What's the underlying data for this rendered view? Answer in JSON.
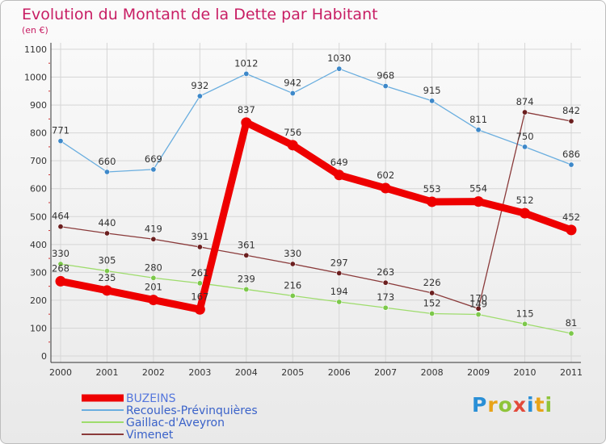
{
  "title": "Evolution du Montant de la Dette par Habitant",
  "subtitle": "(en €)",
  "logo": {
    "text": "Proxiti",
    "colors": [
      "#2a8fd6",
      "#e8a318",
      "#8fc43a",
      "#e24a3b",
      "#2a8fd6",
      "#e8a318",
      "#8fc43a"
    ]
  },
  "chart_data": {
    "type": "line",
    "x": [
      "2000",
      "2001",
      "2002",
      "2003",
      "2004",
      "2005",
      "2006",
      "2007",
      "2008",
      "2009",
      "2010",
      "2011"
    ],
    "ylim": [
      0,
      1100
    ],
    "yticks": [
      0,
      100,
      200,
      300,
      400,
      500,
      600,
      700,
      800,
      900,
      1000,
      1100
    ],
    "grid": true,
    "legend_position": "bottom-left",
    "series": [
      {
        "name": "BUZEINS",
        "color": "#ee0000",
        "marker": "#ee0000",
        "width": 9,
        "radius": 6.5,
        "values": [
          268,
          235,
          201,
          167,
          837,
          756,
          649,
          602,
          553,
          554,
          512,
          452
        ]
      },
      {
        "name": "Recoules-Prévinquières",
        "color": "#6aaedf",
        "marker": "#3d88c9",
        "width": 1.3,
        "radius": 3.2,
        "values": [
          771,
          660,
          669,
          932,
          1012,
          942,
          1030,
          968,
          915,
          811,
          750,
          686
        ]
      },
      {
        "name": "Gaillac-d'Aveyron",
        "color": "#9edc6c",
        "marker": "#7cc84a",
        "width": 1.3,
        "radius": 3.2,
        "values": [
          330,
          305,
          280,
          261,
          239,
          216,
          194,
          173,
          152,
          149,
          115,
          81
        ]
      },
      {
        "name": "Vimenet",
        "color": "#8a3a3a",
        "marker": "#6b1f1f",
        "width": 1.3,
        "radius": 3.2,
        "values": [
          464,
          440,
          419,
          391,
          361,
          330,
          297,
          263,
          226,
          170,
          874,
          842
        ]
      }
    ]
  }
}
